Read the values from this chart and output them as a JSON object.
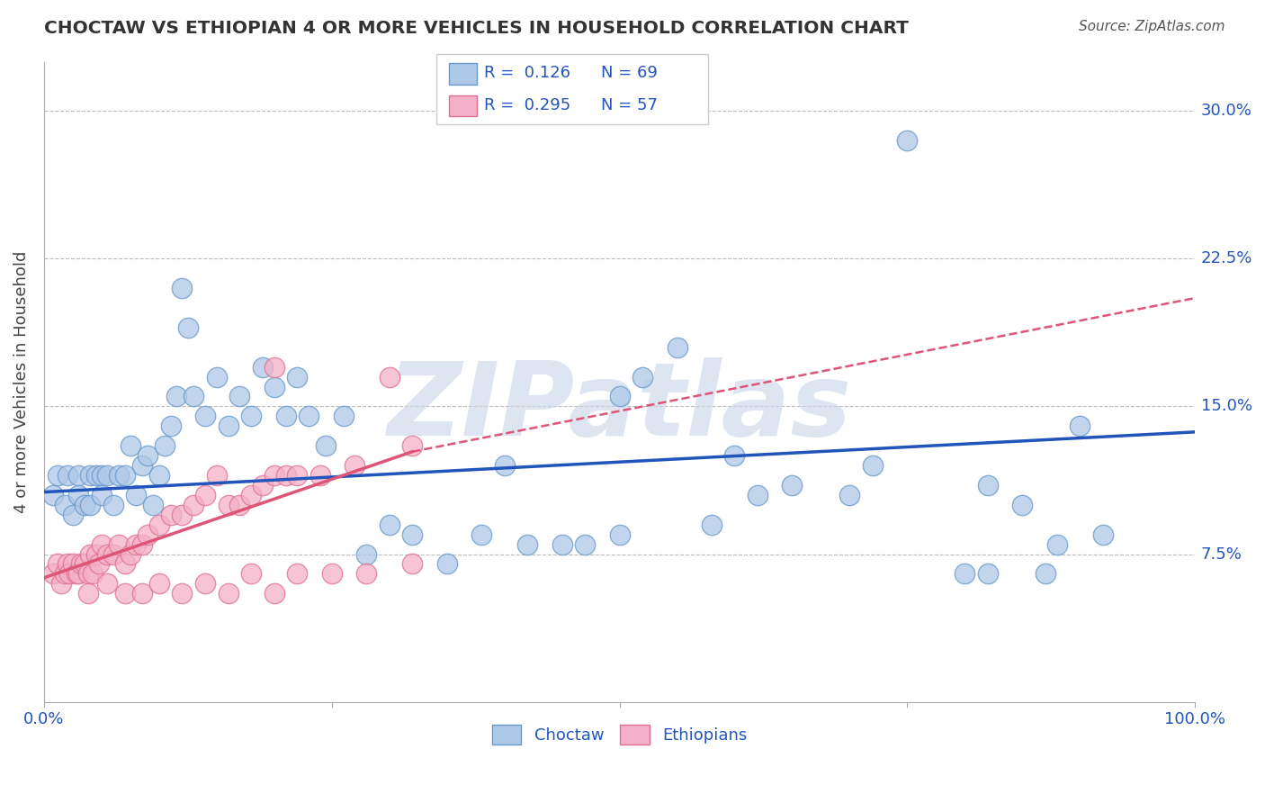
{
  "title": "CHOCTAW VS ETHIOPIAN 4 OR MORE VEHICLES IN HOUSEHOLD CORRELATION CHART",
  "source": "Source: ZipAtlas.com",
  "ylabel": "4 or more Vehicles in Household",
  "xlim": [
    0.0,
    1.0
  ],
  "ylim": [
    0.0,
    0.325
  ],
  "xtick_positions": [
    0.0,
    0.25,
    0.5,
    0.75,
    1.0
  ],
  "xticklabels": [
    "0.0%",
    "",
    "",
    "",
    "100.0%"
  ],
  "ytick_positions": [
    0.075,
    0.15,
    0.225,
    0.3
  ],
  "ytick_labels": [
    "7.5%",
    "15.0%",
    "22.5%",
    "30.0%"
  ],
  "choctaw_color": "#aec8e8",
  "choctaw_edge": "#6699cc",
  "ethiopian_color": "#f4b0c8",
  "ethiopian_edge": "#e07090",
  "blue_line_color": "#2255bb",
  "pink_line_color": "#dd5577",
  "grid_color": "#bbbbbb",
  "background_color": "#ffffff",
  "watermark_text": "ZIPatlas",
  "legend_R1": "R = 0.126",
  "legend_N1": "N = 69",
  "legend_R2": "R = 0.295",
  "legend_N2": "N = 57",
  "choctaw_label": "Choctaw",
  "ethiopian_label": "Ethiopians",
  "choctaw_scatter_x": [
    0.008,
    0.012,
    0.018,
    0.02,
    0.025,
    0.03,
    0.03,
    0.035,
    0.04,
    0.04,
    0.045,
    0.05,
    0.05,
    0.055,
    0.06,
    0.065,
    0.07,
    0.075,
    0.08,
    0.085,
    0.09,
    0.095,
    0.1,
    0.105,
    0.11,
    0.115,
    0.12,
    0.125,
    0.13,
    0.14,
    0.15,
    0.16,
    0.17,
    0.18,
    0.19,
    0.2,
    0.21,
    0.22,
    0.23,
    0.245,
    0.26,
    0.28,
    0.3,
    0.32,
    0.35,
    0.38,
    0.4,
    0.42,
    0.45,
    0.47,
    0.5,
    0.52,
    0.55,
    0.58,
    0.6,
    0.62,
    0.65,
    0.7,
    0.72,
    0.75,
    0.8,
    0.82,
    0.85,
    0.87,
    0.88,
    0.9,
    0.92,
    0.82,
    0.5
  ],
  "choctaw_scatter_y": [
    0.105,
    0.115,
    0.1,
    0.115,
    0.095,
    0.105,
    0.115,
    0.1,
    0.115,
    0.1,
    0.115,
    0.115,
    0.105,
    0.115,
    0.1,
    0.115,
    0.115,
    0.13,
    0.105,
    0.12,
    0.125,
    0.1,
    0.115,
    0.13,
    0.14,
    0.155,
    0.21,
    0.19,
    0.155,
    0.145,
    0.165,
    0.14,
    0.155,
    0.145,
    0.17,
    0.16,
    0.145,
    0.165,
    0.145,
    0.13,
    0.145,
    0.075,
    0.09,
    0.085,
    0.07,
    0.085,
    0.12,
    0.08,
    0.08,
    0.08,
    0.085,
    0.165,
    0.18,
    0.09,
    0.125,
    0.105,
    0.11,
    0.105,
    0.12,
    0.285,
    0.065,
    0.11,
    0.1,
    0.065,
    0.08,
    0.14,
    0.085,
    0.065,
    0.155
  ],
  "ethiopian_scatter_x": [
    0.008,
    0.012,
    0.015,
    0.018,
    0.02,
    0.022,
    0.025,
    0.028,
    0.03,
    0.032,
    0.035,
    0.038,
    0.04,
    0.042,
    0.045,
    0.048,
    0.05,
    0.055,
    0.06,
    0.065,
    0.07,
    0.075,
    0.08,
    0.085,
    0.09,
    0.1,
    0.11,
    0.12,
    0.13,
    0.14,
    0.15,
    0.16,
    0.17,
    0.18,
    0.19,
    0.2,
    0.21,
    0.22,
    0.24,
    0.27,
    0.3,
    0.32,
    0.038,
    0.055,
    0.07,
    0.085,
    0.1,
    0.12,
    0.14,
    0.16,
    0.18,
    0.2,
    0.22,
    0.25,
    0.28,
    0.32,
    0.2
  ],
  "ethiopian_scatter_y": [
    0.065,
    0.07,
    0.06,
    0.065,
    0.07,
    0.065,
    0.07,
    0.065,
    0.065,
    0.07,
    0.07,
    0.065,
    0.075,
    0.065,
    0.075,
    0.07,
    0.08,
    0.075,
    0.075,
    0.08,
    0.07,
    0.075,
    0.08,
    0.08,
    0.085,
    0.09,
    0.095,
    0.095,
    0.1,
    0.105,
    0.115,
    0.1,
    0.1,
    0.105,
    0.11,
    0.115,
    0.115,
    0.115,
    0.115,
    0.12,
    0.165,
    0.13,
    0.055,
    0.06,
    0.055,
    0.055,
    0.06,
    0.055,
    0.06,
    0.055,
    0.065,
    0.055,
    0.065,
    0.065,
    0.065,
    0.07,
    0.17
  ],
  "choctaw_line": {
    "x0": 0.0,
    "x1": 1.0,
    "y0": 0.1065,
    "y1": 0.137
  },
  "ethiopian_solid_line": {
    "x0": 0.0,
    "x1": 0.32,
    "y0": 0.063,
    "y1": 0.127
  },
  "ethiopian_dashed_line": {
    "x0": 0.32,
    "x1": 1.0,
    "y0": 0.127,
    "y1": 0.205
  }
}
